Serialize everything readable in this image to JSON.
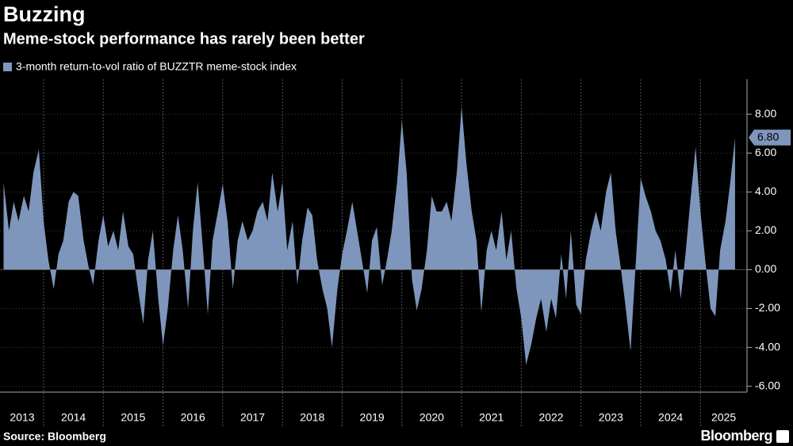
{
  "chart_data": {
    "type": "area",
    "title": "Buzzing",
    "subtitle": "Meme-stock performance has rarely been better",
    "source": "Source: Bloomberg",
    "brand": "Bloomberg",
    "x": [
      2013.33,
      2013.42,
      2013.5,
      2013.58,
      2013.67,
      2013.75,
      2013.83,
      2013.92,
      2014.0,
      2014.08,
      2014.17,
      2014.25,
      2014.33,
      2014.42,
      2014.5,
      2014.58,
      2014.67,
      2014.75,
      2014.83,
      2014.92,
      2015.0,
      2015.08,
      2015.17,
      2015.25,
      2015.33,
      2015.42,
      2015.5,
      2015.58,
      2015.67,
      2015.75,
      2015.83,
      2015.92,
      2016.0,
      2016.08,
      2016.17,
      2016.25,
      2016.33,
      2016.42,
      2016.5,
      2016.58,
      2016.67,
      2016.75,
      2016.83,
      2016.92,
      2017.0,
      2017.08,
      2017.17,
      2017.25,
      2017.33,
      2017.42,
      2017.5,
      2017.58,
      2017.67,
      2017.75,
      2017.83,
      2017.92,
      2018.0,
      2018.08,
      2018.17,
      2018.25,
      2018.33,
      2018.42,
      2018.5,
      2018.58,
      2018.67,
      2018.75,
      2018.83,
      2018.92,
      2019.0,
      2019.08,
      2019.17,
      2019.25,
      2019.33,
      2019.42,
      2019.5,
      2019.58,
      2019.67,
      2019.75,
      2019.83,
      2019.92,
      2020.0,
      2020.08,
      2020.17,
      2020.25,
      2020.33,
      2020.42,
      2020.5,
      2020.58,
      2020.67,
      2020.75,
      2020.83,
      2020.92,
      2021.0,
      2021.08,
      2021.17,
      2021.25,
      2021.33,
      2021.42,
      2021.5,
      2021.58,
      2021.67,
      2021.75,
      2021.83,
      2021.92,
      2022.0,
      2022.08,
      2022.17,
      2022.25,
      2022.33,
      2022.42,
      2022.5,
      2022.58,
      2022.67,
      2022.75,
      2022.83,
      2022.92,
      2023.0,
      2023.08,
      2023.17,
      2023.25,
      2023.33,
      2023.42,
      2023.5,
      2023.58,
      2023.67,
      2023.75,
      2023.83,
      2023.92,
      2024.0,
      2024.08,
      2024.17,
      2024.25,
      2024.33,
      2024.42,
      2024.5,
      2024.58,
      2024.67,
      2024.75,
      2024.83,
      2024.92,
      2025.0,
      2025.08,
      2025.17,
      2025.25,
      2025.33,
      2025.42,
      2025.5,
      2025.58
    ],
    "series": [
      {
        "name": "3-month return-to-vol ratio of BUZZTR meme-stock index",
        "color": "#7e96bb",
        "values": [
          4.5,
          2.0,
          3.5,
          2.5,
          3.8,
          3.0,
          5.0,
          6.2,
          2.5,
          0.5,
          -1.0,
          0.8,
          1.5,
          3.5,
          4.0,
          3.8,
          1.5,
          0.2,
          -0.8,
          1.5,
          2.8,
          1.2,
          2.0,
          1.0,
          3.0,
          1.2,
          0.8,
          -1.0,
          -2.8,
          0.5,
          2.0,
          -1.5,
          -3.9,
          -2.0,
          1.0,
          2.8,
          1.0,
          -2.0,
          2.0,
          4.5,
          1.0,
          -2.3,
          1.5,
          3.0,
          4.4,
          2.5,
          -1.0,
          1.5,
          2.5,
          1.5,
          2.0,
          3.0,
          3.5,
          2.5,
          5.0,
          3.0,
          4.5,
          1.0,
          2.5,
          -0.8,
          1.5,
          3.2,
          2.8,
          0.5,
          -1.0,
          -2.0,
          -4.0,
          -1.0,
          0.8,
          2.0,
          3.5,
          2.0,
          0.5,
          -1.2,
          1.5,
          2.2,
          -0.8,
          0.5,
          2.0,
          4.5,
          7.7,
          5.0,
          -0.5,
          -2.1,
          -1.0,
          1.0,
          3.8,
          3.0,
          3.0,
          3.5,
          2.5,
          5.0,
          8.4,
          5.5,
          3.0,
          1.5,
          -2.2,
          1.0,
          2.0,
          1.0,
          3.0,
          0.5,
          2.0,
          -1.0,
          -2.5,
          -4.9,
          -3.8,
          -2.5,
          -1.5,
          -3.2,
          -1.5,
          -2.5,
          0.8,
          -1.5,
          2.0,
          -1.8,
          -2.3,
          0.5,
          2.0,
          3.0,
          2.0,
          4.0,
          5.0,
          2.0,
          0.0,
          -2.0,
          -4.2,
          0.5,
          4.7,
          3.8,
          3.0,
          2.0,
          1.5,
          0.5,
          -1.2,
          1.0,
          -1.5,
          0.8,
          3.5,
          6.3,
          3.0,
          0.5,
          -2.0,
          -2.4,
          1.0,
          2.5,
          4.5,
          6.8
        ]
      }
    ],
    "last_value": {
      "value": 6.8,
      "label": "6.80"
    },
    "xlim": [
      2013.27,
      2025.78
    ],
    "xticks": [
      2013,
      2014,
      2015,
      2016,
      2017,
      2018,
      2019,
      2020,
      2021,
      2022,
      2023,
      2024,
      2025
    ],
    "ylim": [
      -6.3,
      9.8
    ],
    "yticks": [
      {
        "value": -6,
        "label": "-6.00"
      },
      {
        "value": -4,
        "label": "-4.00"
      },
      {
        "value": -2,
        "label": "-2.00"
      },
      {
        "value": 0,
        "label": "0.00"
      },
      {
        "value": 2,
        "label": "2.00"
      },
      {
        "value": 4,
        "label": "4.00"
      },
      {
        "value": 6,
        "label": "6.00"
      },
      {
        "value": 8,
        "label": "8.00"
      }
    ],
    "grid": true
  }
}
